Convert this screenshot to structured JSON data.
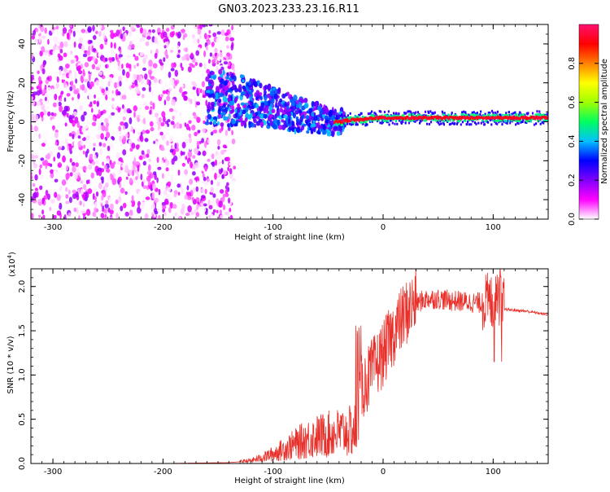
{
  "title": "GN03.2023.233.23.16.R11",
  "chart_data": [
    {
      "type": "heatmap",
      "xlabel": "Height of straight line (km)",
      "ylabel": "Frequency (Hz)",
      "xlim": [
        -320,
        150
      ],
      "ylim": [
        -50,
        50
      ],
      "xticks": [
        -300,
        -200,
        -100,
        0,
        100
      ],
      "yticks": [
        -40,
        -20,
        0,
        20,
        40
      ],
      "colorbar": {
        "label": "Normalized spectral amplitude",
        "range": [
          0,
          1
        ],
        "ticks": [
          0.0,
          0.2,
          0.4,
          0.6,
          0.8
        ],
        "colors": [
          "#ffffff",
          "#ff00ff",
          "#8000ff",
          "#0000ff",
          "#00c0ff",
          "#00ff60",
          "#a0ff00",
          "#ffff00",
          "#ff8000",
          "#ff0000",
          "#ff1070"
        ]
      },
      "ridge": {
        "x": [
          -150,
          -130,
          -110,
          -100,
          -90,
          -80,
          -70,
          -60,
          -50,
          -40,
          -30,
          -20,
          -10,
          0,
          20,
          40,
          60,
          80,
          100,
          120,
          150
        ],
        "y": [
          12,
          11,
          9,
          7,
          6,
          4,
          3,
          2,
          0,
          0,
          1,
          1,
          2,
          2,
          2,
          2,
          2,
          2,
          2,
          2,
          2
        ]
      }
    },
    {
      "type": "line",
      "xlabel": "Height of straight line (km)",
      "ylabel": "SNR (10 * v/v)",
      "yexponent_label": "(x10",
      "yexponent_power": "4",
      "yexponent_close": ")",
      "xlim": [
        -320,
        150
      ],
      "ylim": [
        0,
        2.2
      ],
      "xticks": [
        -300,
        -200,
        -100,
        0,
        100
      ],
      "yticks": [
        0.0,
        0.5,
        1.0,
        1.5,
        2.0
      ],
      "color": "#e8302a",
      "envelope": {
        "x": [
          -320,
          -200,
          -140,
          -120,
          -110,
          -100,
          -90,
          -80,
          -70,
          -60,
          -50,
          -40,
          -30,
          -25,
          -20,
          -10,
          0,
          10,
          20,
          30,
          40,
          50,
          60,
          70,
          80,
          90,
          100,
          105,
          110,
          120,
          130,
          140,
          150
        ],
        "y": [
          0.0,
          0.0,
          0.01,
          0.03,
          0.06,
          0.1,
          0.15,
          0.2,
          0.25,
          0.28,
          0.3,
          0.32,
          0.33,
          0.35,
          0.8,
          1.0,
          1.2,
          1.45,
          1.65,
          1.8,
          1.85,
          1.85,
          1.83,
          1.82,
          1.81,
          1.8,
          1.78,
          1.76,
          1.74,
          1.73,
          1.72,
          1.7,
          1.68
        ]
      }
    }
  ]
}
